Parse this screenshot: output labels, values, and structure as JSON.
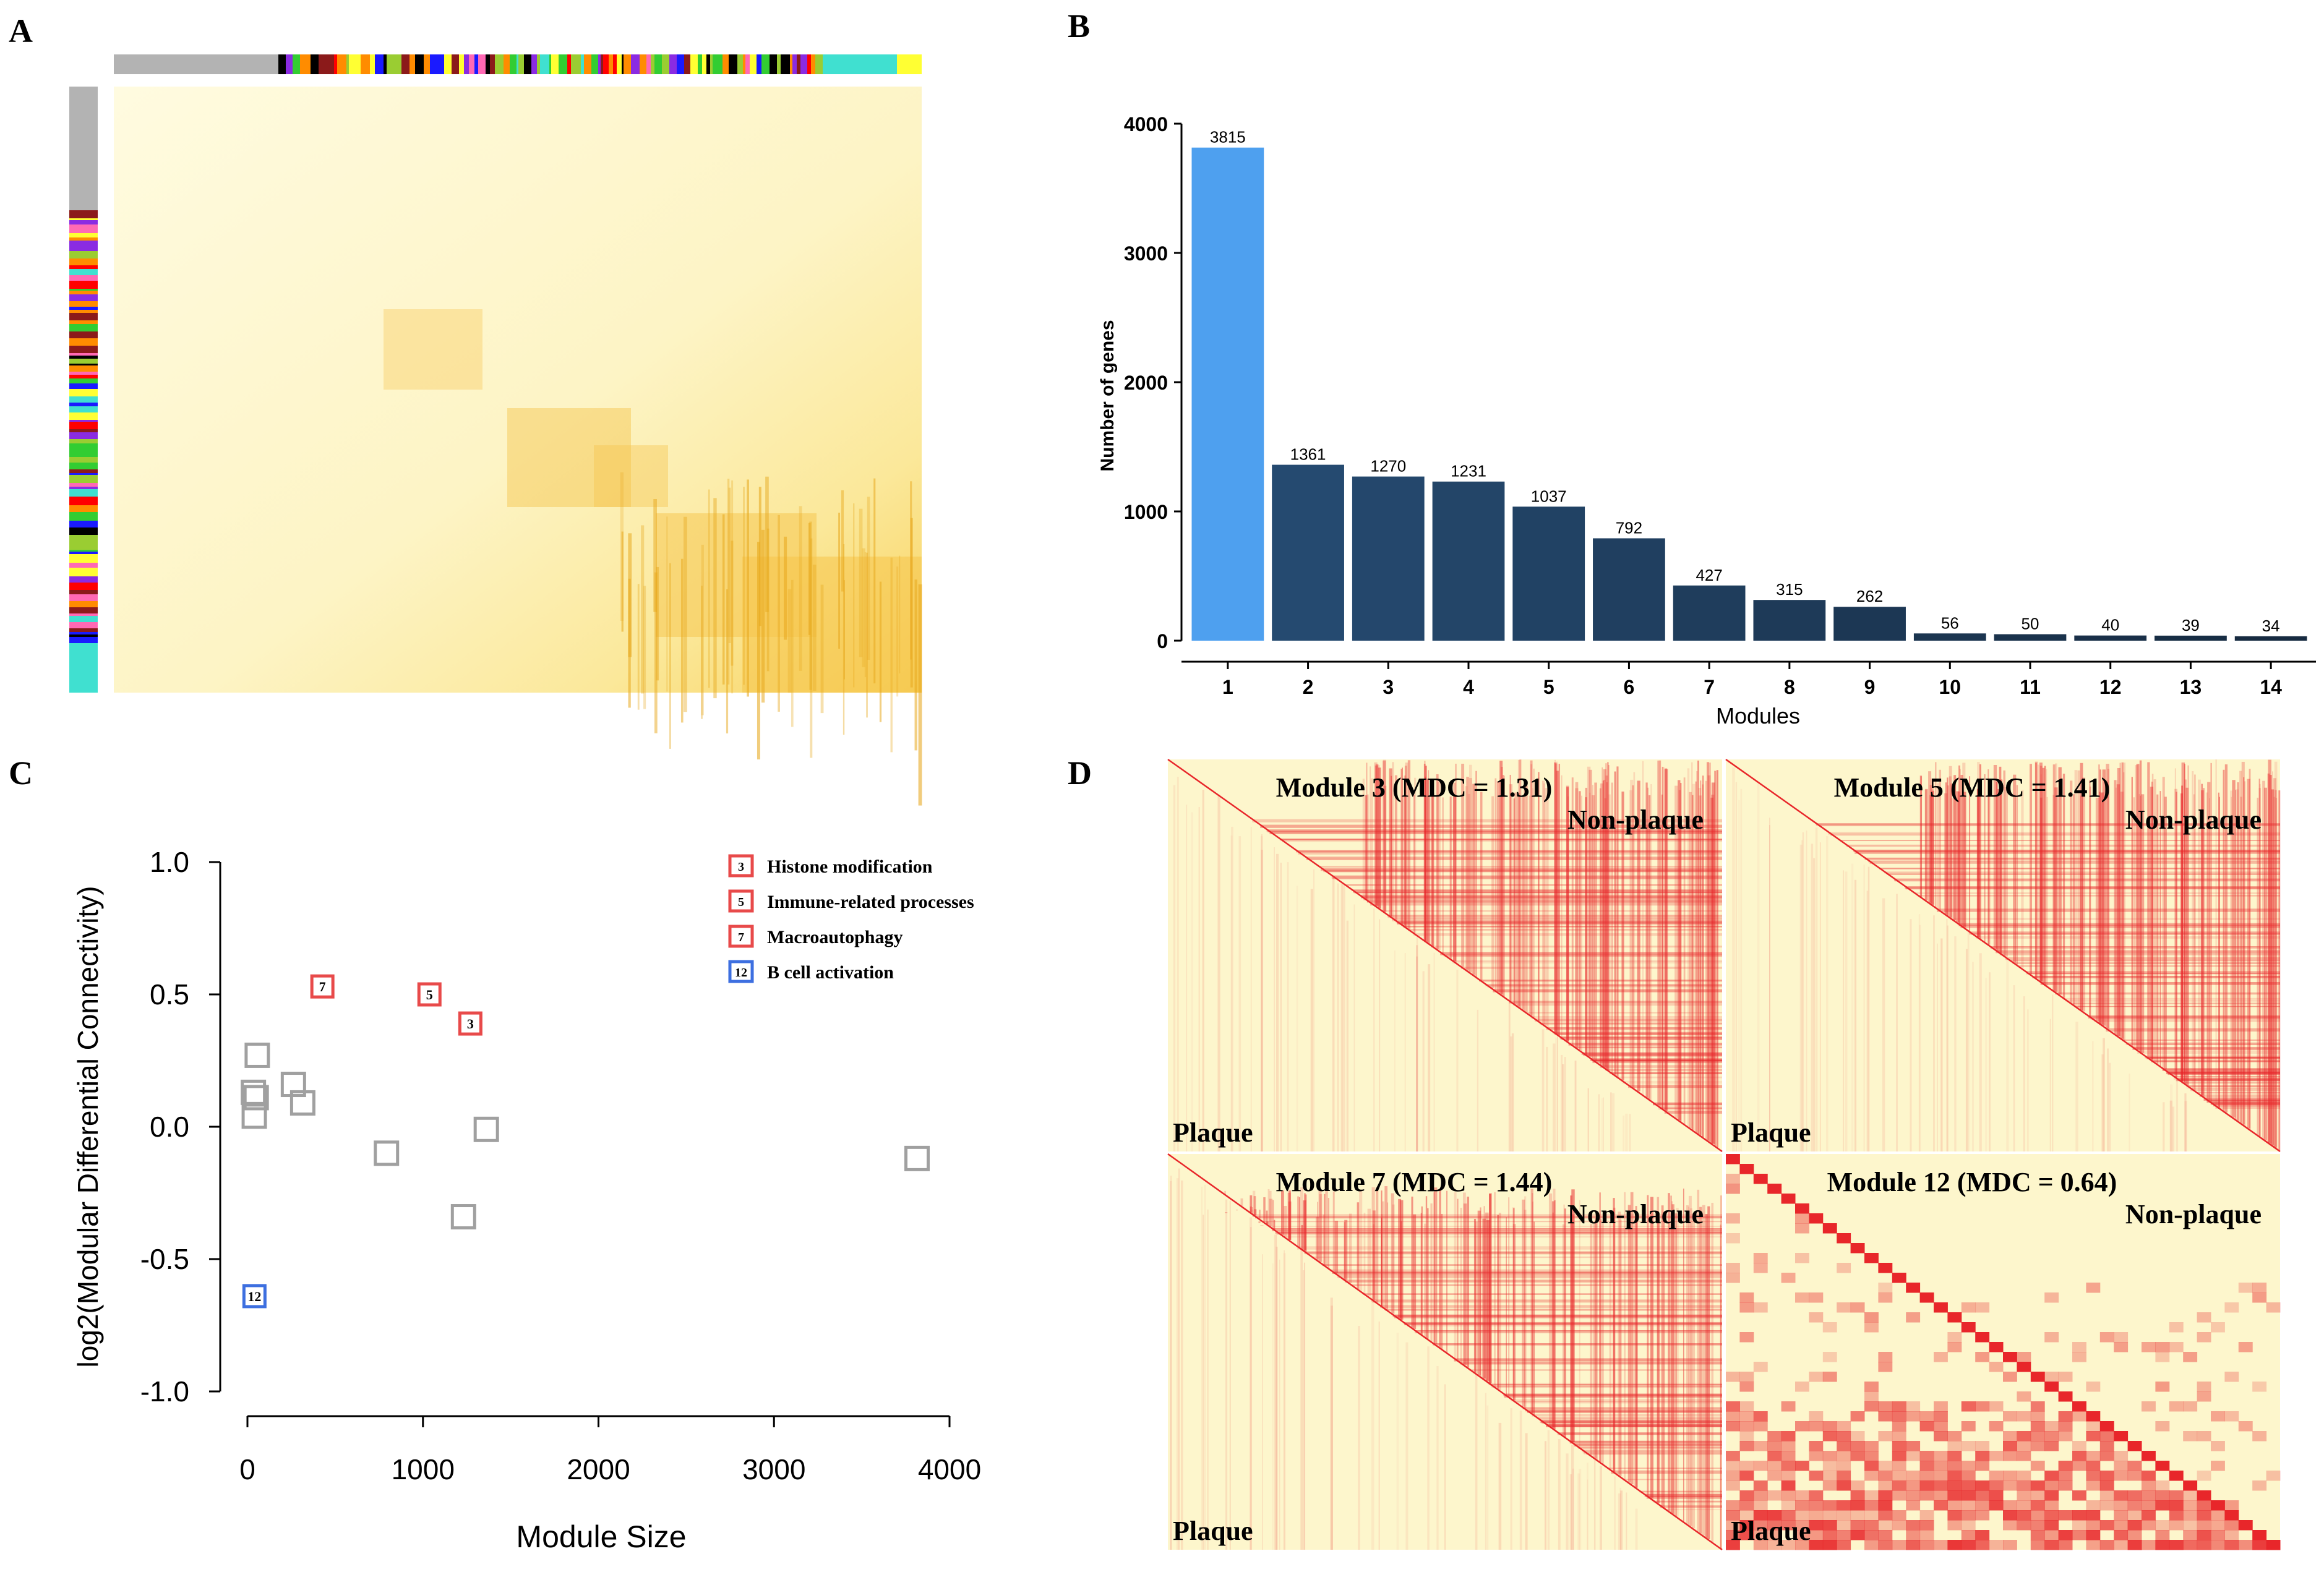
{
  "panels": {
    "a": {
      "label": "A"
    },
    "b": {
      "label": "B"
    },
    "c": {
      "label": "C"
    },
    "d": {
      "label": "D"
    }
  },
  "colors": {
    "bar_highlight": "#4ea0ef",
    "bar_dark_start": "#254a70",
    "bar_dark_end": "#162a40",
    "heat_bg": "#fdf6cc",
    "heat_warm": "#f5c44a",
    "heat_red": "#e8262a",
    "legend_red": "#e84a4a",
    "legend_blue": "#3d6fe0",
    "neutral_marker": "#a0a0a0"
  },
  "chart_data": [
    {
      "panel": "A",
      "type": "heatmap",
      "title": "",
      "description_colors": [
        "#b3b3b3",
        "#ff69b4",
        "#1a1aff",
        "#8b1a1a",
        "#000000",
        "#ffff33",
        "#9acd32",
        "#40e0d0",
        "#32cd32",
        "#ff0000",
        "#ff8c00",
        "#8a2be2"
      ]
    },
    {
      "panel": "B",
      "type": "bar",
      "title": "",
      "xlabel": "Modules",
      "ylabel": "Number of genes",
      "categories": [
        "1",
        "2",
        "3",
        "4",
        "5",
        "6",
        "7",
        "8",
        "9",
        "10",
        "11",
        "12",
        "13",
        "14"
      ],
      "values": [
        3815,
        1361,
        1270,
        1231,
        1037,
        792,
        427,
        315,
        262,
        56,
        50,
        40,
        39,
        34
      ],
      "ylim": [
        0,
        4000
      ],
      "yticks": [
        0,
        1000,
        2000,
        3000,
        4000
      ]
    },
    {
      "panel": "C",
      "type": "scatter",
      "title": "",
      "xlabel": "Module Size",
      "ylabel": "log2(Modular Differential Connectivity)",
      "xlim": [
        0,
        4000
      ],
      "ylim": [
        -1.0,
        1.0
      ],
      "xticks": [
        "0",
        "1000",
        "2000",
        "3000",
        "4000"
      ],
      "yticks": [
        "1.0",
        "0.5",
        "0.0",
        "-0.5",
        "-1.0"
      ],
      "xticks_num": [
        0,
        1000,
        2000,
        3000,
        4000
      ],
      "yticks_num": [
        1.0,
        0.5,
        0.0,
        -0.5,
        -1.0
      ],
      "points": [
        {
          "module": "1",
          "x": 3815,
          "y": -0.12,
          "group": "other",
          "label": ""
        },
        {
          "module": "2",
          "x": 1361,
          "y": -0.01,
          "group": "other",
          "label": ""
        },
        {
          "module": "3",
          "x": 1270,
          "y": 0.39,
          "group": "red",
          "label": "3"
        },
        {
          "module": "4",
          "x": 1231,
          "y": -0.34,
          "group": "other",
          "label": ""
        },
        {
          "module": "5",
          "x": 1037,
          "y": 0.5,
          "group": "red",
          "label": "5"
        },
        {
          "module": "6",
          "x": 792,
          "y": -0.1,
          "group": "other",
          "label": ""
        },
        {
          "module": "7",
          "x": 427,
          "y": 0.53,
          "group": "red",
          "label": "7"
        },
        {
          "module": "8",
          "x": 315,
          "y": 0.09,
          "group": "other",
          "label": ""
        },
        {
          "module": "9",
          "x": 262,
          "y": 0.16,
          "group": "other",
          "label": ""
        },
        {
          "module": "10",
          "x": 56,
          "y": 0.27,
          "group": "other",
          "label": ""
        },
        {
          "module": "11",
          "x": 50,
          "y": 0.11,
          "group": "other",
          "label": ""
        },
        {
          "module": "12",
          "x": 40,
          "y": -0.64,
          "group": "blue",
          "label": "12"
        },
        {
          "module": "13",
          "x": 39,
          "y": 0.04,
          "group": "other",
          "label": ""
        },
        {
          "module": "14",
          "x": 34,
          "y": 0.13,
          "group": "other",
          "label": ""
        }
      ],
      "legend": [
        {
          "key": "3",
          "text": "Histone modification",
          "group": "red"
        },
        {
          "key": "5",
          "text": "Immune-related processes",
          "group": "red"
        },
        {
          "key": "7",
          "text": "Macroautophagy",
          "group": "red"
        },
        {
          "key": "12",
          "text": "B cell activation",
          "group": "blue"
        }
      ]
    },
    {
      "panel": "D",
      "type": "heatmap",
      "subplots": [
        {
          "title": "Module 3 (MDC = 1.31)",
          "upper": "Non-plaque",
          "lower": "Plaque"
        },
        {
          "title": "Module 5 (MDC = 1.41)",
          "upper": "Non-plaque",
          "lower": "Plaque"
        },
        {
          "title": "Module 7 (MDC = 1.44)",
          "upper": "Non-plaque",
          "lower": "Plaque"
        },
        {
          "title": "Module 12 (MDC = 0.64)",
          "upper": "Non-plaque",
          "lower": "Plaque"
        }
      ]
    }
  ]
}
